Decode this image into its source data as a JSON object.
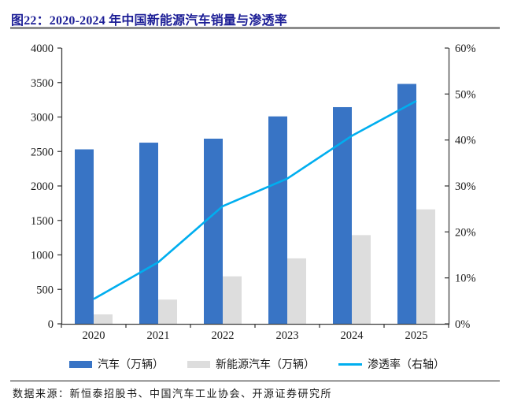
{
  "header": {
    "title": "图22：2020-2024 年中国新能源汽车销量与渗透率"
  },
  "chart_data": {
    "type": "bar",
    "subtype": "grouped-bar-with-line-combo",
    "title": "2020-2024 年中国新能源汽车销量与渗透率",
    "categories": [
      "2020",
      "2021",
      "2022",
      "2023",
      "2024",
      "2025"
    ],
    "series": [
      {
        "name": "汽车（万辆）",
        "type": "bar",
        "axis": "left",
        "values": [
          2531,
          2628,
          2686,
          3009,
          3143,
          3480
        ]
      },
      {
        "name": "新能源汽车（万辆）",
        "type": "bar",
        "axis": "left",
        "values": [
          137,
          352,
          689,
          950,
          1287,
          1660
        ]
      },
      {
        "name": "渗透率（右轴）",
        "type": "line",
        "axis": "right",
        "values": [
          5.4,
          13.4,
          25.6,
          31.6,
          40.9,
          48.5
        ]
      }
    ],
    "y_left": {
      "min": 0,
      "max": 4000,
      "tick_values": [
        0,
        500,
        1000,
        1500,
        2000,
        2500,
        3000,
        3500,
        4000
      ],
      "tick_labels": [
        "0",
        "500",
        "1000",
        "1500",
        "2000",
        "2500",
        "3000",
        "3500",
        "4000"
      ]
    },
    "y_right": {
      "min": 0,
      "max": 60,
      "tick_values": [
        0,
        10,
        20,
        30,
        40,
        50,
        60
      ],
      "tick_labels": [
        "0%",
        "10%",
        "20%",
        "30%",
        "40%",
        "50%",
        "60%"
      ]
    },
    "xlabel": "",
    "ylabel": "",
    "grid": false,
    "legend_position": "bottom"
  },
  "legend": {
    "items": [
      {
        "label": "汽车（万辆）",
        "swatch": "bar"
      },
      {
        "label": "新能源汽车（万辆）",
        "swatch": "bar"
      },
      {
        "label": "渗透率（右轴）",
        "swatch": "line"
      }
    ]
  },
  "footer": {
    "source": "数据来源：新恒泰招股书、中国汽车工业协会、开源证券研究所"
  },
  "colors": {
    "title_text": "#1c1e96",
    "title_divider": "#8c8c8c",
    "bar_auto": "#3874c5",
    "bar_nev": "#dddddd",
    "line_penetration": "#00aeef",
    "axis": "#404040",
    "footer_divider": "#1a1a1a",
    "text": "#1a1a1a"
  }
}
